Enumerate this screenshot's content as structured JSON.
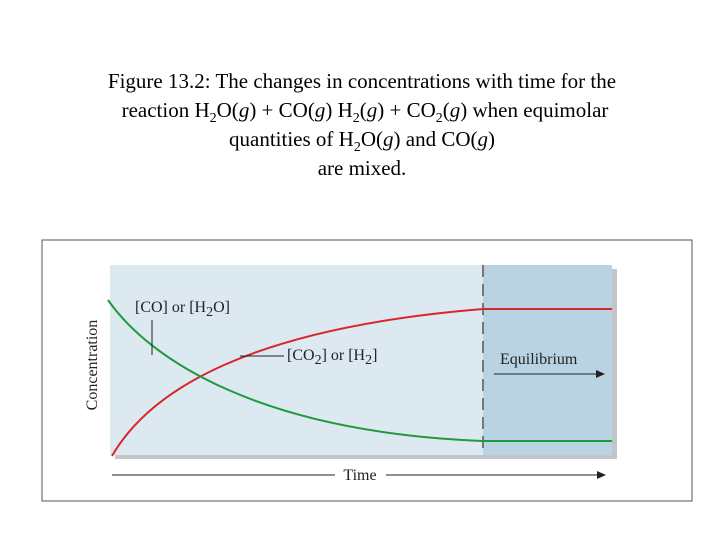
{
  "caption": {
    "lines": [
      [
        "Figure 13.2:  The changes in concentrations with time for the"
      ],
      [
        "reaction H",
        "2",
        "O(",
        "g",
        ") + CO(",
        "g",
        ") H",
        "2",
        "(",
        "g",
        ") + CO",
        "2",
        "(",
        "g",
        ") when equimolar"
      ],
      [
        "quantities of H",
        "2",
        "O(",
        "g",
        ") and CO(",
        "g",
        ")"
      ],
      [
        "are mixed."
      ]
    ]
  },
  "figure": {
    "y_axis_label": "Concentration",
    "x_axis_label": "Time",
    "reactant_label": [
      "[CO] or [H",
      "2",
      "O]"
    ],
    "product_label": [
      "[CO",
      "2",
      "] or [H",
      "2",
      "]"
    ],
    "region_label": "Equilibrium"
  }
}
